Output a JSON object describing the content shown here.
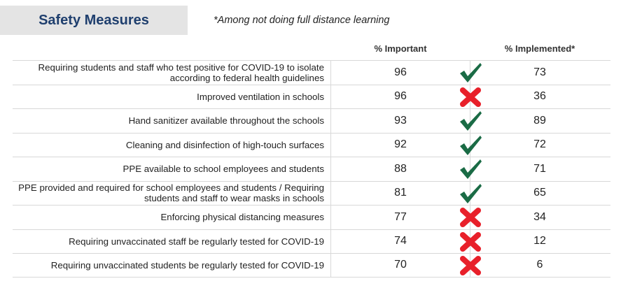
{
  "title": "Safety Measures",
  "note": "*Among not doing full distance learning",
  "columns": {
    "important": "% Important",
    "implemented": "% Implemented*"
  },
  "colors": {
    "check": "#1a6b45",
    "cross": "#e8202a",
    "title": "#1f3f6e"
  },
  "rows": [
    {
      "label": "Requiring students and staff who test positive for COVID-19 to isolate according to federal health guidelines",
      "important": "96",
      "status": "check-icon",
      "implemented": "73"
    },
    {
      "label": "Improved ventilation in schools",
      "important": "96",
      "status": "cross-icon",
      "implemented": "36"
    },
    {
      "label": "Hand sanitizer available throughout the schools",
      "important": "93",
      "status": "check-icon",
      "implemented": "89"
    },
    {
      "label": "Cleaning and disinfection of high-touch surfaces",
      "important": "92",
      "status": "check-icon",
      "implemented": "72"
    },
    {
      "label": "PPE available to school employees and students",
      "important": "88",
      "status": "check-icon",
      "implemented": "71"
    },
    {
      "label": "PPE provided and required for school employees and students / Requiring students and staff to wear masks in schools",
      "important": "81",
      "status": "check-icon",
      "implemented": "65"
    },
    {
      "label": "Enforcing physical distancing measures",
      "important": "77",
      "status": "cross-icon",
      "implemented": "34"
    },
    {
      "label": "Requiring unvaccinated staff be regularly tested for COVID-19",
      "important": "74",
      "status": "cross-icon",
      "implemented": "12"
    },
    {
      "label": "Requiring unvaccinated students be regularly tested for COVID-19",
      "important": "70",
      "status": "cross-icon",
      "implemented": "6"
    }
  ]
}
